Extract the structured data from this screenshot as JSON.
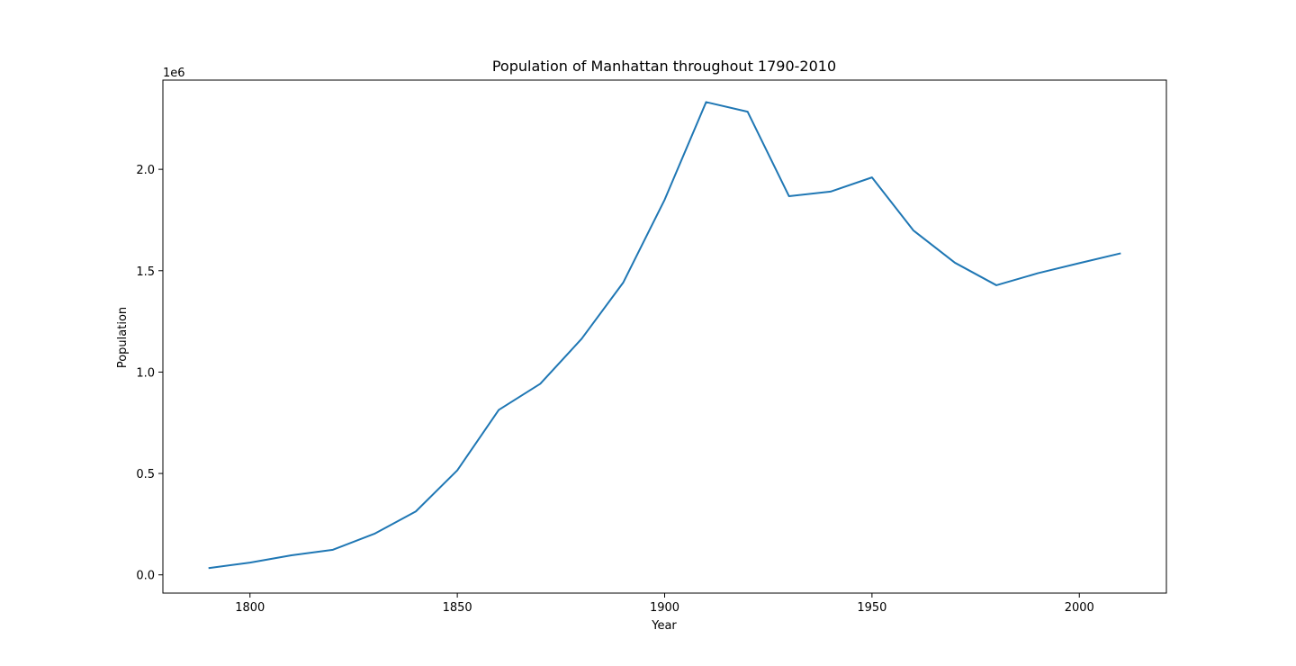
{
  "chart_data": {
    "type": "line",
    "title": "Population of Manhattan throughout 1790-2010",
    "xlabel": "Year",
    "ylabel": "Population",
    "y_offset_label": "1e6",
    "xlim": [
      1779,
      2021
    ],
    "ylim": [
      -90000,
      2440000
    ],
    "x_ticks": [
      1800,
      1850,
      1900,
      1950,
      2000
    ],
    "x_tick_labels": [
      "1800",
      "1850",
      "1900",
      "1950",
      "2000"
    ],
    "y_ticks": [
      0,
      500000,
      1000000,
      1500000,
      2000000
    ],
    "y_tick_labels": [
      "0.0",
      "0.5",
      "1.0",
      "1.5",
      "2.0"
    ],
    "grid": false,
    "legend": "none",
    "series": [
      {
        "color": "#1f77b4",
        "x": [
          1790,
          1800,
          1810,
          1820,
          1830,
          1840,
          1850,
          1860,
          1870,
          1880,
          1890,
          1900,
          1910,
          1920,
          1930,
          1940,
          1950,
          1960,
          1970,
          1980,
          1990,
          2000,
          2010
        ],
        "y": [
          33131,
          60515,
          96373,
          123706,
          202589,
          312710,
          515547,
          813669,
          942292,
          1164673,
          1441216,
          1850093,
          2331542,
          2284103,
          1867312,
          1889924,
          1960101,
          1698281,
          1539233,
          1428285,
          1487536,
          1537195,
          1585873
        ]
      }
    ]
  }
}
